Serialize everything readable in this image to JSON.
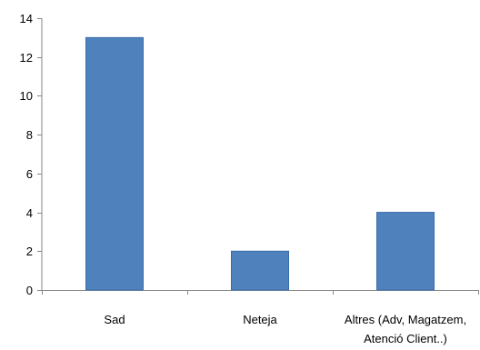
{
  "chart_data": {
    "type": "bar",
    "categories": [
      [
        "Sad"
      ],
      [
        "Neteja"
      ],
      [
        "Altres (Adv, Magatzem,",
        "Atenció Client..)"
      ]
    ],
    "values": [
      13,
      2,
      4
    ],
    "ylim": [
      0,
      14
    ],
    "yticks": [
      0,
      2,
      4,
      6,
      8,
      10,
      12,
      14
    ],
    "grid": false,
    "legend": "none",
    "colors": {
      "bar": "#4F81BD",
      "bar_stroke": "#3A6CA8",
      "axis": "#868686"
    }
  }
}
